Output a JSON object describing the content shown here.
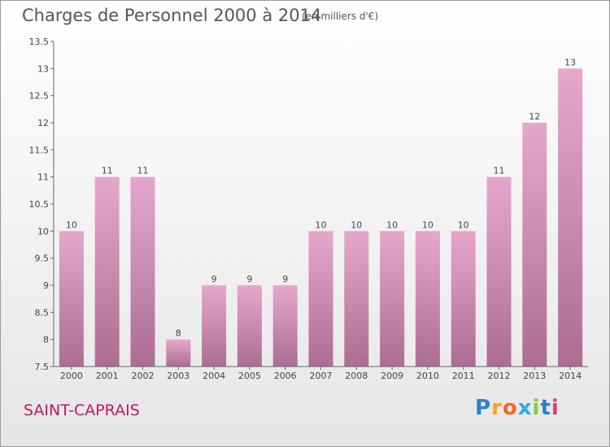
{
  "header": {
    "title": "Charges de Personnel 2000 à 2014",
    "subtitle": "(en milliers d'€)"
  },
  "footer": {
    "commune": "SAINT-CAPRAIS",
    "logo": "Proxiti",
    "logo_colors": [
      "#2a7fd4",
      "#f7a21b",
      "#f26a1b",
      "#2fa8e0",
      "#8cc63f",
      "#2a7fd4",
      "#e63b7a"
    ]
  },
  "colors": {
    "bar_top": "#e5a8cc",
    "bar_bottom": "#ad6d93",
    "axis": "#666666",
    "text": "#444444"
  },
  "chart_data": {
    "type": "bar",
    "categories": [
      "2000",
      "2001",
      "2002",
      "2003",
      "2004",
      "2005",
      "2006",
      "2007",
      "2008",
      "2009",
      "2010",
      "2011",
      "2012",
      "2013",
      "2014"
    ],
    "values": [
      10,
      11,
      11,
      8,
      9,
      9,
      9,
      10,
      10,
      10,
      10,
      10,
      11,
      12,
      13
    ],
    "data_labels": [
      "10",
      "11",
      "11",
      "8",
      "9",
      "9",
      "9",
      "10",
      "10",
      "10",
      "10",
      "10",
      "11",
      "12",
      "13"
    ],
    "yticks": [
      7.5,
      8,
      8.5,
      9,
      9.5,
      10,
      10.5,
      11,
      11.5,
      12,
      12.5,
      13,
      13.5
    ],
    "ytick_labels": [
      "7.5",
      "8",
      "8.5",
      "9",
      "9.5",
      "10",
      "10.5",
      "11",
      "11.5",
      "12",
      "12.5",
      "13",
      "13.5"
    ],
    "ylim": [
      7.5,
      13.5
    ],
    "grid": false,
    "xlabel": "",
    "ylabel": ""
  }
}
